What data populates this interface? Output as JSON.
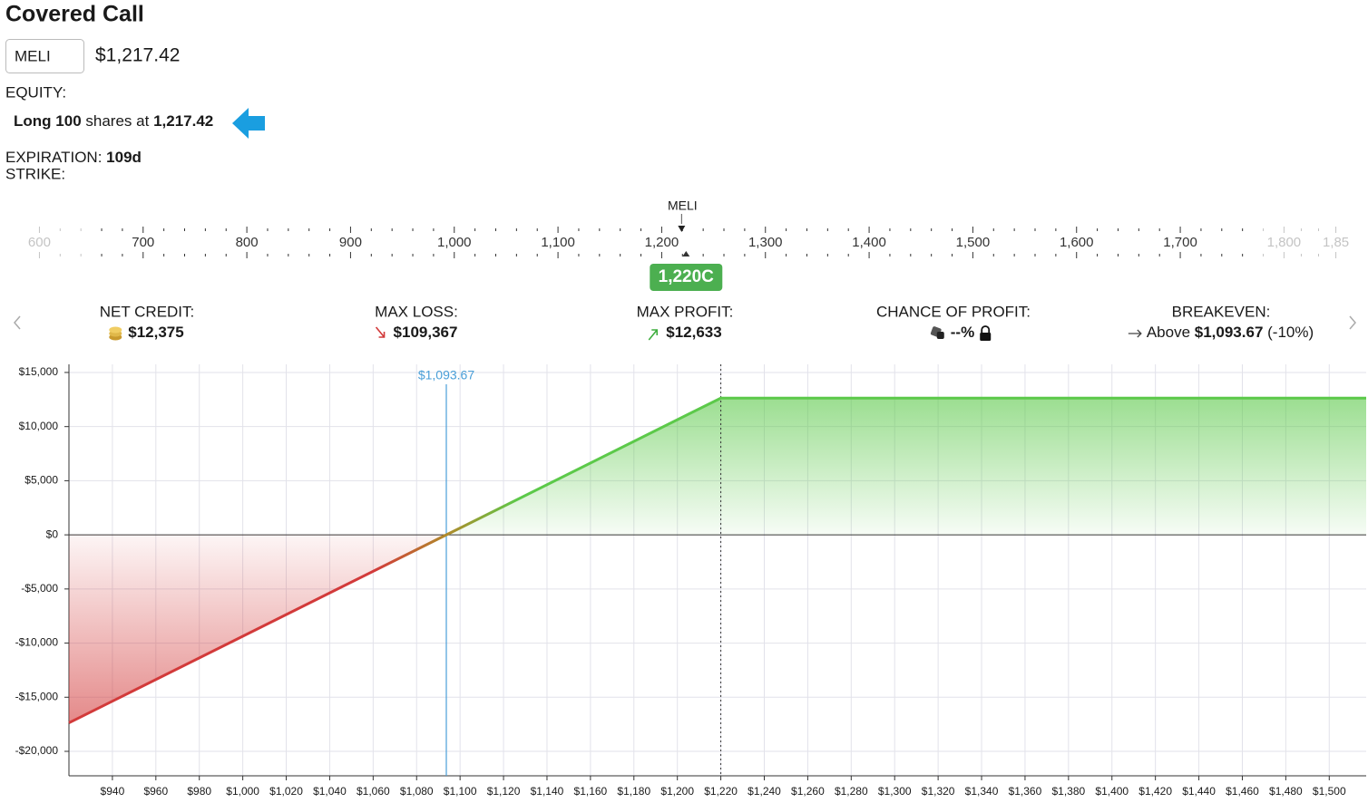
{
  "header": {
    "title": "Covered Call",
    "symbol": "MELI",
    "price": "$1,217.42"
  },
  "equity": {
    "label": "EQUITY:",
    "side": "Long",
    "quantity": "100",
    "text": "shares at",
    "price": "1,217.42"
  },
  "expiration": {
    "label": "EXPIRATION:",
    "value": "109d"
  },
  "strike": {
    "label": "STRIKE:"
  },
  "strike_ruler": {
    "marker_label": "MELI",
    "marker_value": 1217.42,
    "xlim": [
      562,
      1881
    ],
    "ticks": [
      600,
      700,
      800,
      900,
      {
        "value": 1000,
        "label": "1,000"
      },
      {
        "value": 1100,
        "label": "1,100"
      },
      {
        "value": 1200,
        "label": "1,200"
      },
      {
        "value": 1300,
        "label": "1,300"
      },
      {
        "value": 1400,
        "label": "1,400"
      },
      {
        "value": 1500,
        "label": "1,500"
      },
      {
        "value": 1600,
        "label": "1,600"
      },
      {
        "value": 1700,
        "label": "1,700"
      },
      {
        "value": 1800,
        "label": "1,800"
      },
      {
        "value": 1850,
        "label": "1,85"
      }
    ],
    "selected": {
      "value": 1220,
      "label": "1,220C"
    }
  },
  "stats": [
    {
      "label": "NET CREDIT:",
      "value": "$12,375"
    },
    {
      "label": "MAX LOSS:",
      "value": "$109,367"
    },
    {
      "label": "MAX PROFIT:",
      "value": "$12,633"
    },
    {
      "label": "CHANCE OF PROFIT:",
      "value": "--%"
    },
    {
      "label": "BREAKEVEN:",
      "prefix": "Above",
      "value": "$1,093.67",
      "suffix": "(-10%)"
    }
  ],
  "chart_data": {
    "type": "line",
    "x": [
      920,
      1093.67,
      1220,
      1517
    ],
    "series": [
      {
        "values": [
          -17367,
          0,
          12633,
          12633
        ],
        "color": "#5cc94a",
        "negative_color": "#d23a3a"
      }
    ],
    "xlim": [
      920,
      1517
    ],
    "ylim": [
      -22260,
      15750
    ],
    "xticks": [
      {
        "value": 940,
        "label": "$940"
      },
      {
        "value": 960,
        "label": "$960"
      },
      {
        "value": 980,
        "label": "$980"
      },
      {
        "value": 1000,
        "label": "$1,000"
      },
      {
        "value": 1020,
        "label": "$1,020"
      },
      {
        "value": 1040,
        "label": "$1,040"
      },
      {
        "value": 1060,
        "label": "$1,060"
      },
      {
        "value": 1080,
        "label": "$1,080"
      },
      {
        "value": 1100,
        "label": "$1,100"
      },
      {
        "value": 1120,
        "label": "$1,120"
      },
      {
        "value": 1140,
        "label": "$1,140"
      },
      {
        "value": 1160,
        "label": "$1,160"
      },
      {
        "value": 1180,
        "label": "$1,180"
      },
      {
        "value": 1200,
        "label": "$1,200"
      },
      {
        "value": 1220,
        "label": "$1,220"
      },
      {
        "value": 1240,
        "label": "$1,240"
      },
      {
        "value": 1260,
        "label": "$1,260"
      },
      {
        "value": 1280,
        "label": "$1,280"
      },
      {
        "value": 1300,
        "label": "$1,300"
      },
      {
        "value": 1320,
        "label": "$1,320"
      },
      {
        "value": 1340,
        "label": "$1,340"
      },
      {
        "value": 1360,
        "label": "$1,360"
      },
      {
        "value": 1380,
        "label": "$1,380"
      },
      {
        "value": 1400,
        "label": "$1,400"
      },
      {
        "value": 1420,
        "label": "$1,420"
      },
      {
        "value": 1440,
        "label": "$1,440"
      },
      {
        "value": 1460,
        "label": "$1,460"
      },
      {
        "value": 1480,
        "label": "$1,480"
      },
      {
        "value": 1500,
        "label": "$1,500"
      }
    ],
    "yticks": [
      {
        "value": 15000,
        "label": "$15,000"
      },
      {
        "value": 10000,
        "label": "$10,000"
      },
      {
        "value": 5000,
        "label": "$5,000"
      },
      {
        "value": 0,
        "label": "$0"
      },
      {
        "value": -5000,
        "label": "-$5,000"
      },
      {
        "value": -10000,
        "label": "-$10,000"
      },
      {
        "value": -15000,
        "label": "-$15,000"
      },
      {
        "value": -20000,
        "label": "-$20,000"
      }
    ],
    "breakeven": {
      "value": 1093.67,
      "label": "$1,093.67",
      "color": "#4a9fd8"
    },
    "strike": 1220,
    "grid": true
  }
}
